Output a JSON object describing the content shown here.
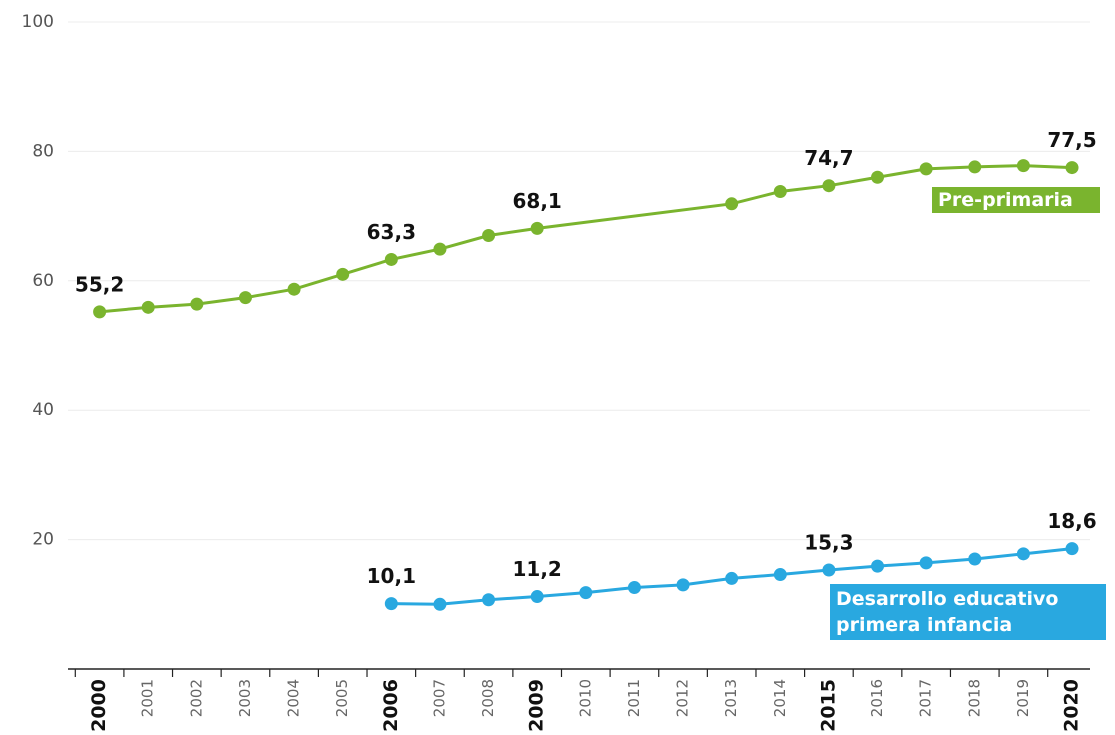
{
  "chart_data": {
    "type": "line",
    "xlim": [
      1999.35,
      2020.37
    ],
    "xticks": [
      2000,
      2001,
      2002,
      2003,
      2004,
      2005,
      2006,
      2007,
      2008,
      2009,
      2010,
      2011,
      2012,
      2013,
      2014,
      2015,
      2016,
      2017,
      2018,
      2019,
      2020
    ],
    "bold_xticks": [
      2000,
      2006,
      2009,
      2015,
      2020
    ],
    "ylim": [
      0,
      100
    ],
    "yticks": [
      20,
      40,
      60,
      80,
      100
    ],
    "grid": true,
    "series": [
      {
        "name": "Pre-primaria",
        "color": "#7ab42e",
        "x": [
          2000,
          2001,
          2002,
          2003,
          2004,
          2005,
          2006,
          2007,
          2008,
          2009,
          2013,
          2014,
          2015,
          2016,
          2017,
          2018,
          2019,
          2020
        ],
        "values": [
          55.2,
          55.9,
          56.4,
          57.4,
          58.7,
          61.0,
          63.3,
          64.9,
          67.0,
          68.1,
          71.9,
          73.8,
          74.7,
          76.0,
          77.3,
          77.6,
          77.8,
          77.5
        ],
        "value_labels": [
          "55,2",
          null,
          null,
          null,
          null,
          null,
          "63,3",
          null,
          null,
          "68,1",
          null,
          null,
          "74,7",
          null,
          null,
          null,
          null,
          "77,5"
        ]
      },
      {
        "name": "Desarrollo educativo primera infancia",
        "color": "#29a8e0",
        "x": [
          2006,
          2007,
          2008,
          2009,
          2010,
          2011,
          2012,
          2013,
          2014,
          2015,
          2016,
          2017,
          2018,
          2019,
          2020
        ],
        "values": [
          10.1,
          10.0,
          10.7,
          11.2,
          11.8,
          12.6,
          13.0,
          14.0,
          14.6,
          15.3,
          15.9,
          16.4,
          17.0,
          17.8,
          18.6
        ],
        "value_labels": [
          "10,1",
          null,
          null,
          "11,2",
          null,
          null,
          null,
          null,
          null,
          "15,3",
          null,
          null,
          null,
          null,
          "18,6"
        ]
      }
    ]
  }
}
